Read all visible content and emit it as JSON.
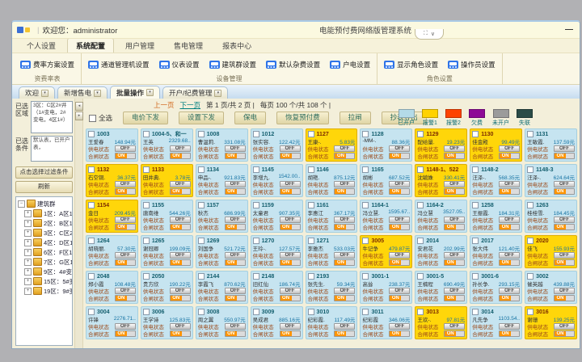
{
  "frame": {
    "welcome": "欢迎您：administrator",
    "product_title": "电能预付费网络版管理系统",
    "fullscreen_icon": "⛶",
    "dropdown_icon": "∨",
    "minimize_icon": "—"
  },
  "menu": {
    "active_index": 1,
    "items": [
      "个人设置",
      "系统配置",
      "用户管理",
      "售电管理",
      "报表中心"
    ]
  },
  "ribbon": {
    "groups": [
      {
        "caption": "资费率表",
        "buttons": [
          "费率方案设置"
        ]
      },
      {
        "caption": "设备管理",
        "buttons": [
          "通道管理机设置",
          "仪表设置",
          "建筑群设置",
          "默认杂费设置",
          "户电设置"
        ]
      },
      {
        "caption": "角色设置",
        "buttons": [
          "显示角色设置",
          "操作员设置"
        ]
      }
    ]
  },
  "doc_tabs": {
    "active_index": 2,
    "items": [
      "欢迎",
      "新增售电",
      "批量操作",
      "开户/纪费管理"
    ]
  },
  "sidebar": {
    "area_label": "已选区域",
    "area_text": "3区：C区2#井（1#变电，2#变电，4区1#）",
    "cond_label": "已选条件",
    "cond_text": "默认表，已开户表，",
    "filter_button": "点击选择过滤条件",
    "refresh_button": "刷新",
    "tree": {
      "root": "建筑群",
      "nodes": [
        "1区：A区1#井",
        "2区：B区1#井（双区）",
        "3区：C区2#井（1#变电）",
        "4区：D区1#井（D区）",
        "6区：F区1#井（F区）",
        "7区：G区1#井",
        "9区：4#变电井（4#）",
        "15区：5#变站（3#变电）",
        "19区：9#变电站（9#）"
      ]
    }
  },
  "toolbar": {
    "prev": "上一页",
    "next": "下一页",
    "page_info": "第 1 页/共 2 页 |",
    "count_info": "每页 100 个/共 108 个 |",
    "select_all": "全选",
    "buttons": [
      "电价下发",
      "设置下发",
      "保电",
      "恢复预付费",
      "拉闸",
      "抄表导出"
    ]
  },
  "legend": [
    {
      "label": "已开户",
      "color": "#b4dbe8"
    },
    {
      "label": "报警1",
      "color": "#ffd200"
    },
    {
      "label": "报警2",
      "color": "#fe4300"
    },
    {
      "label": "欠费",
      "color": "#8e0a96"
    },
    {
      "label": "未开户",
      "color": "#9b9b9b"
    },
    {
      "label": "失联",
      "color": "#2a4b47"
    }
  ],
  "grid": {
    "supply_label": "供电状态",
    "supply_value": "OFF",
    "switch_label": "合闸状态",
    "switch_value": "ON",
    "rows": [
      [
        {
          "room": "1003",
          "name": "王爱春",
          "balance": "148.94元",
          "warn": false
        },
        {
          "room": "1004-5、和一",
          "name": "王英",
          "balance": "2329.68..",
          "warn": false
        },
        {
          "room": "1008",
          "name": "曹温莉.",
          "balance": "331.08元",
          "warn": false
        },
        {
          "room": "1012",
          "name": "张实容.",
          "balance": "122.42元",
          "warn": false
        },
        {
          "room": "1127",
          "name": "王康-.",
          "balance": "5.83元",
          "warn": true
        },
        {
          "room": "1128",
          "name": "-MM-.",
          "balance": "88.36元",
          "warn": false
        },
        {
          "room": "1129",
          "name": "配给量.",
          "balance": "19.23元",
          "warn": true
        },
        {
          "room": "1130",
          "name": "佳金殿",
          "balance": "99.49元",
          "warn": true
        },
        {
          "room": "1131",
          "name": "王敏霞.",
          "balance": "137.59元",
          "warn": false
        }
      ],
      [
        {
          "room": "1132",
          "name": "石空铜.",
          "balance": "36.37元",
          "warn": true
        },
        {
          "room": "1133",
          "name": "田井典.",
          "balance": "3.78元",
          "warn": true
        },
        {
          "room": "1134",
          "name": "申品-.",
          "balance": "921.83元",
          "warn": false
        },
        {
          "room": "1145",
          "name": "李增九.",
          "balance": "1542.00..",
          "warn": false
        },
        {
          "room": "1146",
          "name": "胡艳.",
          "balance": "875.12元",
          "warn": false
        },
        {
          "room": "1165",
          "name": "胡彬",
          "balance": "687.52元",
          "warn": false
        },
        {
          "room": "1148-1、522",
          "name": "沈毓姝",
          "balance": "330.41元",
          "warn": true
        },
        {
          "room": "1148-2",
          "name": "汪泽-.",
          "balance": "568.35元",
          "warn": false
        },
        {
          "room": "1148-3",
          "name": "汪泽-.",
          "balance": "624.64元",
          "warn": false
        }
      ],
      [
        {
          "room": "1154",
          "name": "金日",
          "balance": "209.45元",
          "warn": true
        },
        {
          "room": "1155",
          "name": "唐南维",
          "balance": "544.26元",
          "warn": false
        },
        {
          "room": "1157",
          "name": "秋杰",
          "balance": "686.99元",
          "warn": false
        },
        {
          "room": "1159",
          "name": "太童君",
          "balance": "907.35元",
          "warn": false
        },
        {
          "room": "1161",
          "name": "李惠江",
          "balance": "367.17元",
          "warn": false
        },
        {
          "room": "1164-1",
          "name": "冯立慧.",
          "balance": "1595.67..",
          "warn": false
        },
        {
          "room": "1164-2",
          "name": "冯立慧",
          "balance": "3527.05..",
          "warn": false
        },
        {
          "room": "1258",
          "name": "王振霞.",
          "balance": "184.31元",
          "warn": false
        },
        {
          "room": "1263",
          "name": "桂桂雪.",
          "balance": "184.45元",
          "warn": false
        }
      ],
      [
        {
          "room": "1264",
          "name": "胡晓丽.",
          "balance": "57.30元",
          "warn": false
        },
        {
          "room": "1265",
          "name": "谢冠卿",
          "balance": "199.09元",
          "warn": false
        },
        {
          "room": "1269",
          "name": "刘国争",
          "balance": "521.72元",
          "warn": false
        },
        {
          "room": "1270",
          "name": "王玲-.",
          "balance": "127.57元",
          "warn": false
        },
        {
          "room": "1271",
          "name": "李雅杰",
          "balance": "533.03元",
          "warn": false
        },
        {
          "room": "3005",
          "name": "牛记争",
          "balance": "479.87元",
          "warn": true
        },
        {
          "room": "2014",
          "name": "安君花",
          "balance": "202.99元",
          "warn": false
        },
        {
          "room": "2017",
          "name": "张大伟",
          "balance": "121.40元",
          "warn": false
        },
        {
          "room": "2020",
          "name": "佳飞",
          "balance": "155.93元",
          "warn": true
        }
      ],
      [
        {
          "room": "2048",
          "name": "郑小霞",
          "balance": "108.48元",
          "warn": false
        },
        {
          "room": "2050",
          "name": "贵方欣",
          "balance": "190.22元",
          "warn": false
        },
        {
          "room": "2144",
          "name": "李霞飞",
          "balance": "870.62元",
          "warn": false
        },
        {
          "room": "2148",
          "name": "旧红仙",
          "balance": "186.74元",
          "warn": false
        },
        {
          "room": "2193",
          "name": "张先生.",
          "balance": "59.34元",
          "warn": false
        },
        {
          "room": "3001-1",
          "name": "高耸",
          "balance": "238.37元",
          "warn": false
        },
        {
          "room": "3001-5",
          "name": "王楠程",
          "balance": "690.49元",
          "warn": false
        },
        {
          "room": "3001-6",
          "name": "孙长争.",
          "balance": "293.15元",
          "warn": false
        },
        {
          "room": "3002",
          "name": "催英越",
          "balance": "439.88元",
          "warn": false
        }
      ],
      [
        {
          "room": "3004",
          "name": "许锋",
          "balance": "2276.71..",
          "warn": false
        },
        {
          "room": "3006",
          "name": "王学诗",
          "balance": "125.83元",
          "warn": false
        },
        {
          "room": "3008",
          "name": "周之翼",
          "balance": "550.97元",
          "warn": false
        },
        {
          "room": "3009",
          "name": "吴成君",
          "balance": "885.16元",
          "warn": false
        },
        {
          "room": "3010",
          "name": "纪彩霞.",
          "balance": "117.49元",
          "warn": false
        },
        {
          "room": "3011",
          "name": "纪彩霞",
          "balance": "346.06元",
          "warn": false
        },
        {
          "room": "3013",
          "name": "王欢-.",
          "balance": "97.81元",
          "warn": true
        },
        {
          "room": "3014",
          "name": "凡先争",
          "balance": "1103.54..",
          "warn": false
        },
        {
          "room": "3016",
          "name": "谢珊",
          "balance": "139.25元",
          "warn": true
        }
      ]
    ]
  }
}
